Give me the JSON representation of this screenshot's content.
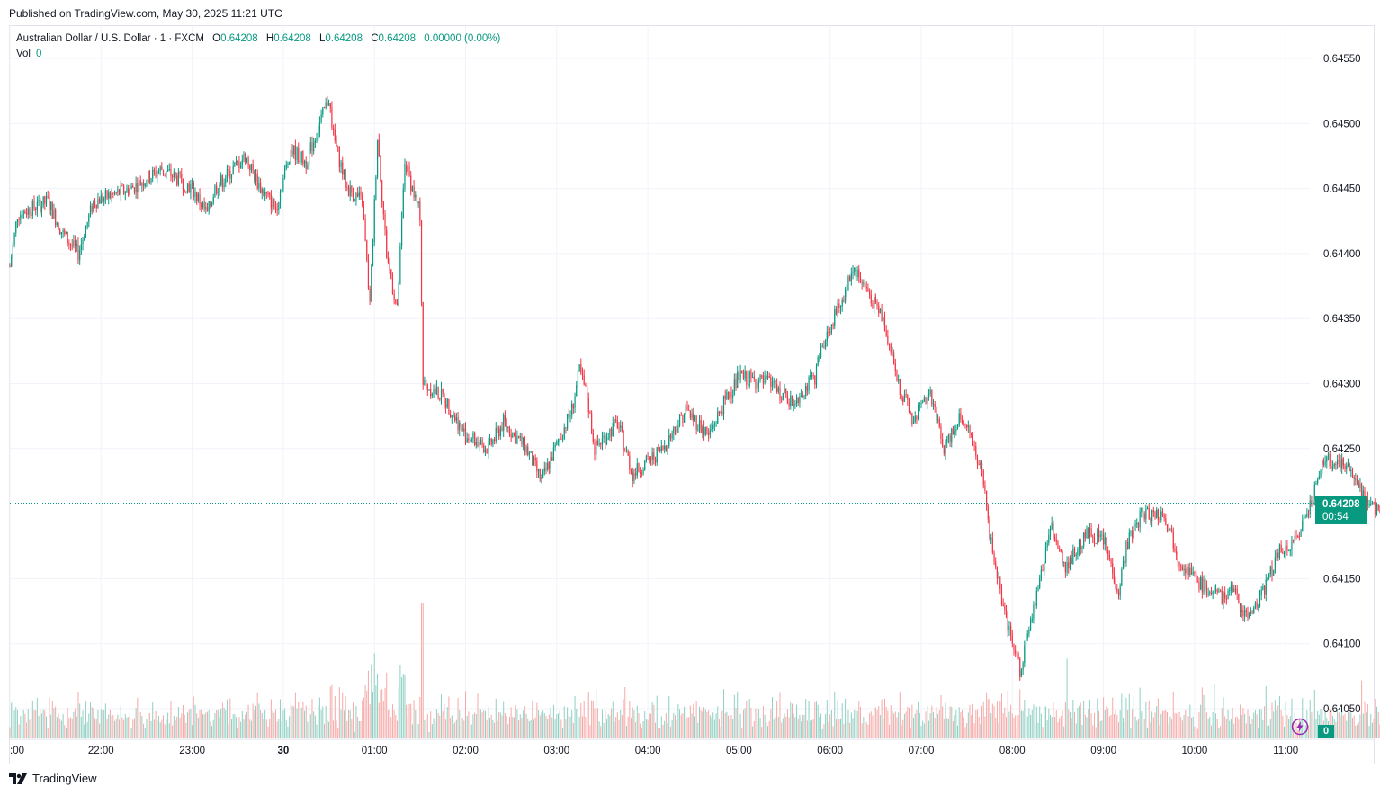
{
  "header": {
    "published": "Published on TradingView.com, May 30, 2025 11:21 UTC"
  },
  "legend": {
    "symbol": "Australian Dollar / U.S. Dollar · 1 · FXCM",
    "o_label": "O",
    "o_value": "0.64208",
    "h_label": "H",
    "h_value": "0.64208",
    "l_label": "L",
    "l_value": "0.64208",
    "c_label": "C",
    "c_value": "0.64208",
    "change": "0.00000 (0.00%)",
    "vol_label": "Vol",
    "vol_value": "0"
  },
  "price_tag": {
    "price": "0.64208",
    "countdown": "00:54"
  },
  "volume_tag": "0",
  "footer": {
    "brand": "TradingView"
  },
  "colors": {
    "up": "#089981",
    "down": "#f23645",
    "up_vol": "#8fd0c3",
    "down_vol": "#f7a9a7",
    "grid": "#f0f3fa"
  },
  "chart_data": {
    "type": "candlestick",
    "title": "Australian Dollar / U.S. Dollar · 1 · FXCM",
    "interval": "1",
    "last_price": 0.64208,
    "y_ticks": [
      "0.64550",
      "0.64500",
      "0.64450",
      "0.64400",
      "0.64350",
      "0.64300",
      "0.64250",
      "0.64150",
      "0.64100",
      "0.64050"
    ],
    "ylim": [
      0.64035,
      0.64565
    ],
    "x_ticks": [
      ":00",
      "22:00",
      "23:00",
      "30",
      "01:00",
      "02:00",
      "03:00",
      "04:00",
      "05:00",
      "06:00",
      "07:00",
      "08:00",
      "09:00",
      "10:00",
      "11:00"
    ],
    "price_path": [
      [
        "21:00",
        0.6439
      ],
      [
        "21:05",
        0.6443
      ],
      [
        "21:25",
        0.6444
      ],
      [
        "21:35",
        0.64415
      ],
      [
        "21:45",
        0.644
      ],
      [
        "21:55",
        0.6444
      ],
      [
        "22:20",
        0.6445
      ],
      [
        "22:40",
        0.64465
      ],
      [
        "23:00",
        0.6445
      ],
      [
        "23:10",
        0.6443
      ],
      [
        "23:15",
        0.6445
      ],
      [
        "23:35",
        0.64475
      ],
      [
        "23:45",
        0.6445
      ],
      [
        "23:55",
        0.64435
      ],
      [
        "24:05",
        0.6448
      ],
      [
        "24:15",
        0.6447
      ],
      [
        "24:30",
        0.6452
      ],
      [
        "24:33",
        0.6449
      ],
      [
        "24:42",
        0.6445
      ],
      [
        "24:52",
        0.6444
      ],
      [
        "24:57",
        0.6436
      ],
      [
        "25:02",
        0.6449
      ],
      [
        "25:08",
        0.644
      ],
      [
        "25:15",
        0.64355
      ],
      [
        "25:20",
        0.6447
      ],
      [
        "25:30",
        0.6443
      ],
      [
        "25:32",
        0.643
      ],
      [
        "25:45",
        0.6429
      ],
      [
        "26:00",
        0.6426
      ],
      [
        "26:15",
        0.6425
      ],
      [
        "26:25",
        0.6427
      ],
      [
        "26:40",
        0.6425
      ],
      [
        "26:50",
        0.64225
      ],
      [
        "27:10",
        0.6428
      ],
      [
        "27:15",
        0.6431
      ],
      [
        "27:20",
        0.6429
      ],
      [
        "27:25",
        0.6425
      ],
      [
        "27:40",
        0.6427
      ],
      [
        "27:50",
        0.6423
      ],
      [
        "28:10",
        0.6425
      ],
      [
        "28:25",
        0.6428
      ],
      [
        "28:40",
        0.6426
      ],
      [
        "28:50",
        0.64285
      ],
      [
        "29:00",
        0.64305
      ],
      [
        "29:20",
        0.643
      ],
      [
        "29:35",
        0.64285
      ],
      [
        "29:50",
        0.64305
      ],
      [
        "29:55",
        0.6433
      ],
      [
        "30:10",
        0.6437
      ],
      [
        "30:15",
        0.6439
      ],
      [
        "30:25",
        0.6437
      ],
      [
        "30:35",
        0.6435
      ],
      [
        "30:45",
        0.643
      ],
      [
        "30:55",
        0.6427
      ],
      [
        "31:05",
        0.64295
      ],
      [
        "31:15",
        0.6425
      ],
      [
        "31:25",
        0.64275
      ],
      [
        "31:30",
        0.6427
      ],
      [
        "31:40",
        0.6423
      ],
      [
        "31:45",
        0.64185
      ],
      [
        "31:55",
        0.6412
      ],
      [
        "32:00",
        0.641
      ],
      [
        "32:05",
        0.6408
      ],
      [
        "32:15",
        0.6413
      ],
      [
        "32:25",
        0.6419
      ],
      [
        "32:35",
        0.6416
      ],
      [
        "32:50",
        0.64185
      ],
      [
        "33:00",
        0.6418
      ],
      [
        "33:10",
        0.6414
      ],
      [
        "33:15",
        0.64175
      ],
      [
        "33:25",
        0.642
      ],
      [
        "33:40",
        0.642
      ],
      [
        "33:50",
        0.64165
      ],
      [
        "34:00",
        0.6415
      ],
      [
        "34:15",
        0.64135
      ],
      [
        "34:25",
        0.6414
      ],
      [
        "34:35",
        0.6412
      ],
      [
        "34:45",
        0.6414
      ],
      [
        "34:55",
        0.6417
      ],
      [
        "35:05",
        0.64175
      ],
      [
        "35:15",
        0.64205
      ],
      [
        "35:25",
        0.6424
      ],
      [
        "35:35",
        0.6424
      ],
      [
        "35:45",
        0.6423
      ],
      [
        "35:55",
        0.64205
      ],
      [
        "36:05",
        0.642
      ],
      [
        "36:10",
        0.64208
      ],
      [
        "36:20",
        0.64208
      ]
    ],
    "volume_max_label": "",
    "notes": ""
  }
}
